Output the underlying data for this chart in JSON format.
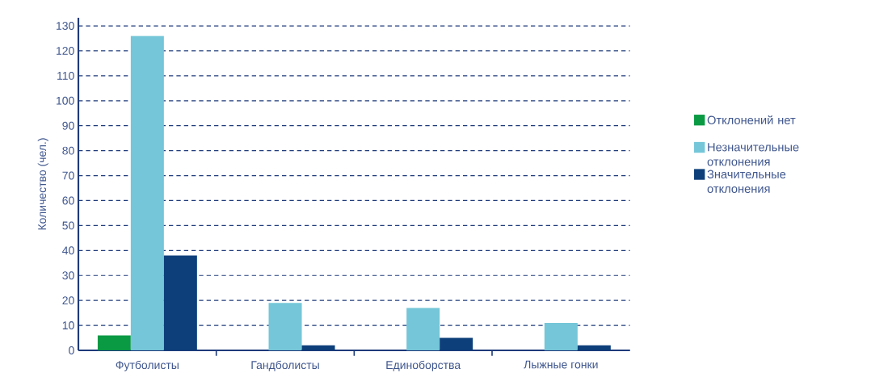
{
  "chart_data": {
    "type": "bar",
    "ylabel": "Количество (чел.)",
    "categories": [
      "Футболисты",
      "Гандболисты",
      "Единоборства",
      "Лыжные гонки"
    ],
    "series": [
      {
        "name": "Отклонений нет",
        "color": "#0a9a44",
        "values": [
          6,
          0,
          0,
          0
        ]
      },
      {
        "name": "Незначительные отклонения",
        "color": "#74c6d8",
        "values": [
          126,
          19,
          17,
          11
        ]
      },
      {
        "name": "Значительные отклонения",
        "color": "#0d3f7a",
        "values": [
          38,
          2,
          5,
          2
        ]
      }
    ],
    "ylim": [
      0,
      130
    ],
    "yticks": [
      0,
      10,
      20,
      30,
      40,
      50,
      60,
      70,
      80,
      90,
      100,
      110,
      120,
      130
    ],
    "grid": "y",
    "legend": "right"
  }
}
